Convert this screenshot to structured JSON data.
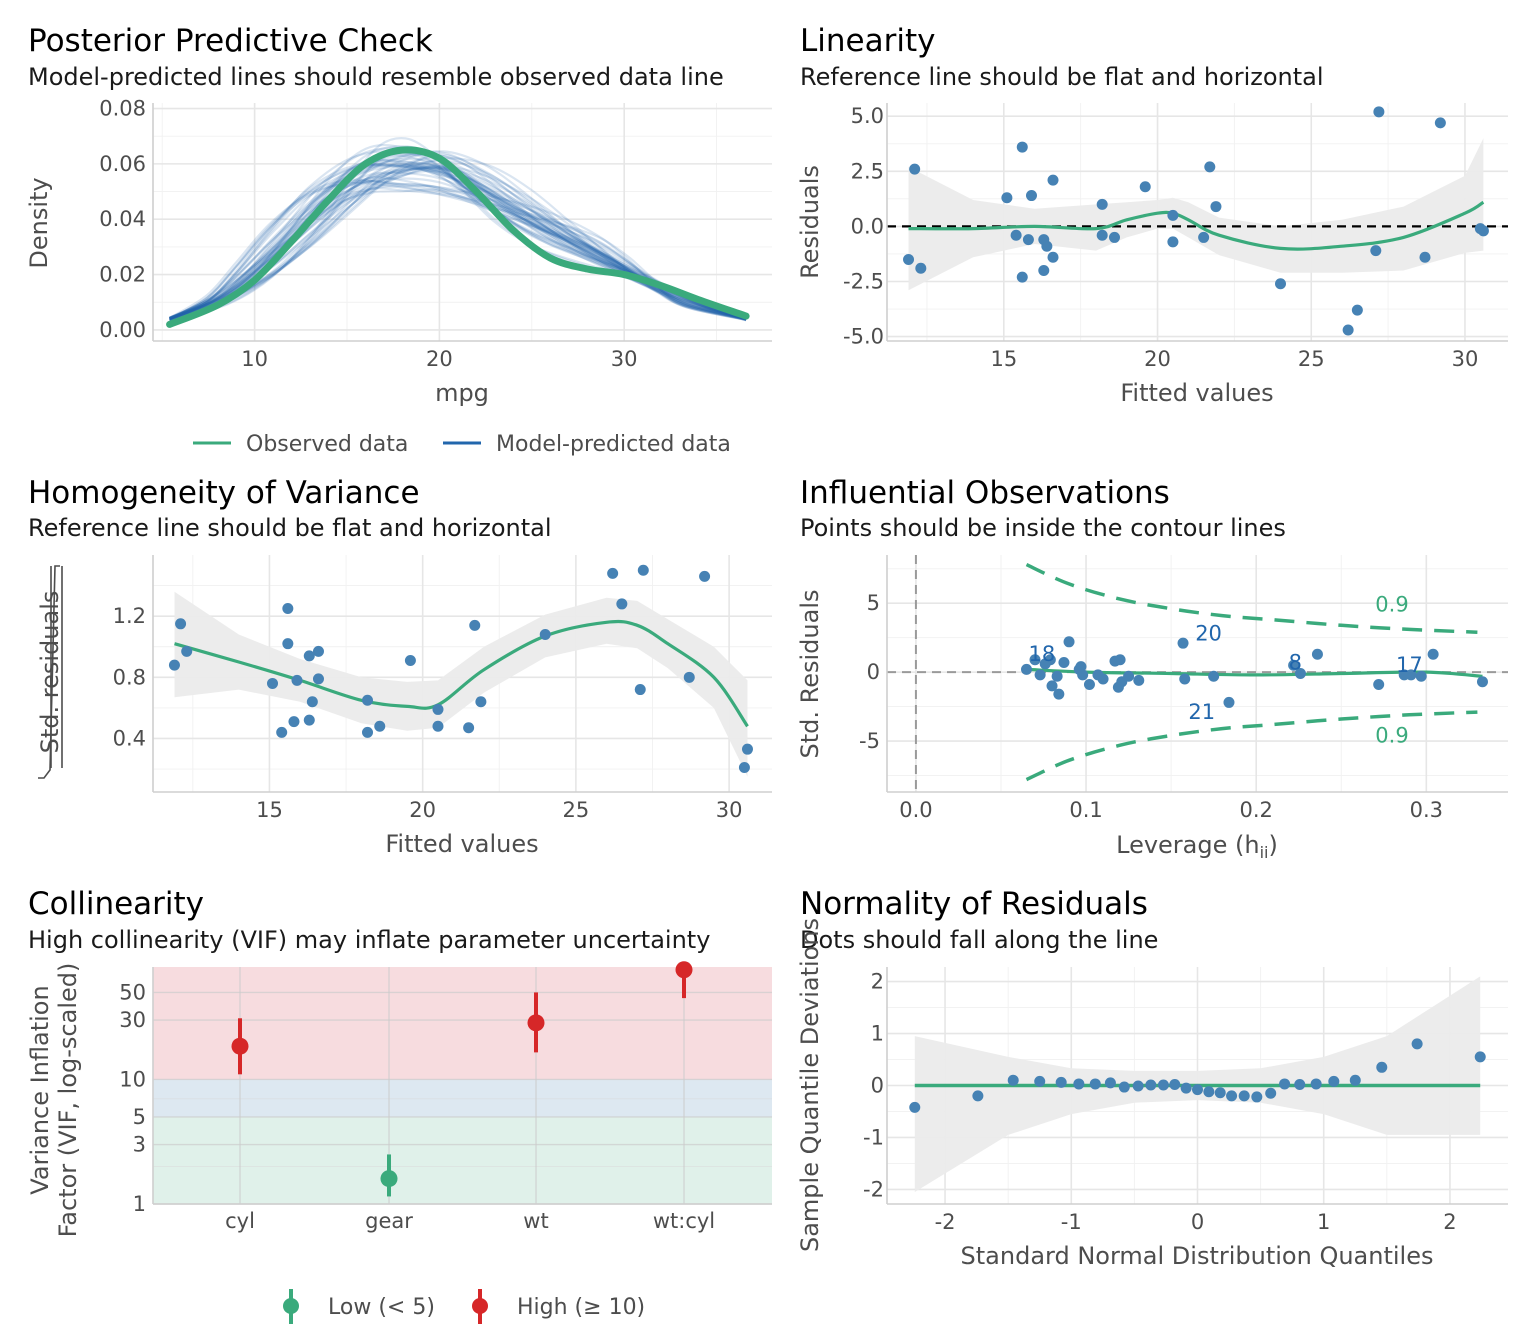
{
  "colors": {
    "green": "#3aaa7c",
    "blue": "#2166ac",
    "dot": "#4682b4",
    "red": "#d62728",
    "band": "#ebebeb"
  },
  "chart_data": [
    {
      "id": "ppc",
      "type": "line",
      "title": "Posterior Predictive Check",
      "subtitle": "Model-predicted lines should resemble observed data line",
      "xlabel": "mpg",
      "ylabel": "Density",
      "xlim": [
        4.5,
        38
      ],
      "ylim": [
        -0.004,
        0.082
      ],
      "xticks": [
        10,
        20,
        30
      ],
      "xtick_labels": [
        "10",
        "20",
        "30"
      ],
      "yticks": [
        0,
        0.02,
        0.04,
        0.06,
        0.08
      ],
      "ytick_labels": [
        "0.00",
        "0.02",
        "0.04",
        "0.06",
        "0.08"
      ],
      "observed": {
        "name": "Observed data",
        "x": [
          5.4,
          8,
          10,
          12,
          14,
          16,
          18,
          20,
          22,
          24,
          26,
          28,
          30,
          32,
          34,
          36.6
        ],
        "y": [
          0.002,
          0.009,
          0.018,
          0.032,
          0.047,
          0.06,
          0.065,
          0.062,
          0.05,
          0.036,
          0.026,
          0.022,
          0.02,
          0.016,
          0.011,
          0.005
        ]
      },
      "predicted": {
        "name": "Model-predicted data",
        "n_draws": 50,
        "x": [
          5.4,
          8,
          10,
          12,
          14,
          16,
          18,
          20,
          22,
          24,
          26,
          28,
          30,
          32,
          34,
          36.6
        ],
        "y": [
          0.004,
          0.011,
          0.021,
          0.034,
          0.047,
          0.056,
          0.059,
          0.058,
          0.052,
          0.044,
          0.036,
          0.029,
          0.022,
          0.015,
          0.009,
          0.004
        ]
      },
      "legend": [
        "Observed data",
        "Model-predicted data"
      ]
    },
    {
      "id": "linearity",
      "type": "scatter",
      "title": "Linearity",
      "subtitle": "Reference line should be flat and horizontal",
      "xlabel": "Fitted values",
      "ylabel": "Residuals",
      "xlim": [
        11.2,
        31.4
      ],
      "ylim": [
        -5.2,
        5.6
      ],
      "xticks": [
        15,
        20,
        25,
        30
      ],
      "xtick_labels": [
        "15",
        "20",
        "25",
        "30"
      ],
      "yticks": [
        -5,
        -2.5,
        0,
        2.5,
        5
      ],
      "ytick_labels": [
        "-5.0",
        "-2.5",
        "0.0",
        "2.5",
        "5.0"
      ],
      "points": [
        [
          11.9,
          -1.5
        ],
        [
          12.1,
          2.6
        ],
        [
          12.3,
          -1.9
        ],
        [
          15.1,
          1.3
        ],
        [
          15.4,
          -0.4
        ],
        [
          15.6,
          3.6
        ],
        [
          15.6,
          -2.3
        ],
        [
          15.8,
          -0.6
        ],
        [
          15.9,
          1.4
        ],
        [
          16.3,
          -2.0
        ],
        [
          16.3,
          -0.6
        ],
        [
          16.4,
          -0.9
        ],
        [
          16.6,
          2.1
        ],
        [
          16.6,
          -1.4
        ],
        [
          18.2,
          1.0
        ],
        [
          18.2,
          -0.4
        ],
        [
          18.6,
          -0.5
        ],
        [
          19.6,
          1.8
        ],
        [
          20.5,
          0.5
        ],
        [
          20.5,
          -0.7
        ],
        [
          21.5,
          -0.5
        ],
        [
          21.7,
          2.7
        ],
        [
          21.9,
          0.9
        ],
        [
          24.0,
          -2.6
        ],
        [
          26.2,
          -4.7
        ],
        [
          26.5,
          -3.8
        ],
        [
          27.1,
          -1.1
        ],
        [
          27.2,
          5.2
        ],
        [
          28.7,
          -1.4
        ],
        [
          29.2,
          4.7
        ],
        [
          30.5,
          -0.1
        ],
        [
          30.6,
          -0.2
        ]
      ],
      "smooth": {
        "x": [
          11.9,
          14,
          16,
          18,
          19,
          20,
          20.5,
          21,
          22,
          24,
          26,
          28,
          30,
          30.6
        ],
        "y": [
          -0.1,
          -0.1,
          0,
          -0.1,
          0.3,
          0.6,
          0.6,
          0.3,
          -0.4,
          -1.0,
          -0.9,
          -0.5,
          0.6,
          1.1
        ],
        "lower": [
          -2.9,
          -1.4,
          -0.8,
          -1.1,
          -0.5,
          -0.1,
          -0.1,
          -0.5,
          -1.3,
          -2.1,
          -2.1,
          -2.0,
          -1.2,
          -1.1
        ],
        "upper": [
          2.7,
          1.2,
          0.8,
          1.0,
          1.1,
          1.2,
          1.3,
          1.1,
          0.4,
          0.0,
          0.3,
          0.9,
          2.3,
          4.0
        ]
      }
    },
    {
      "id": "homogeneity",
      "type": "scatter",
      "title": "Homogeneity of Variance",
      "subtitle": "Reference line should be flat and horizontal",
      "xlabel": "Fitted values",
      "ylabel": "Std. residuals",
      "xlim": [
        11.2,
        31.4
      ],
      "ylim": [
        0.05,
        1.6
      ],
      "xticks": [
        15,
        20,
        25,
        30
      ],
      "xtick_labels": [
        "15",
        "20",
        "25",
        "30"
      ],
      "yticks": [
        0.4,
        0.8,
        1.2
      ],
      "ytick_labels": [
        "0.4",
        "0.8",
        "1.2"
      ],
      "points": [
        [
          11.9,
          0.88
        ],
        [
          12.1,
          1.15
        ],
        [
          12.3,
          0.97
        ],
        [
          15.1,
          0.76
        ],
        [
          15.4,
          0.44
        ],
        [
          15.6,
          1.25
        ],
        [
          15.6,
          1.02
        ],
        [
          15.8,
          0.51
        ],
        [
          15.9,
          0.78
        ],
        [
          16.3,
          0.94
        ],
        [
          16.3,
          0.52
        ],
        [
          16.4,
          0.64
        ],
        [
          16.6,
          0.97
        ],
        [
          16.6,
          0.79
        ],
        [
          18.2,
          0.65
        ],
        [
          18.2,
          0.44
        ],
        [
          18.6,
          0.48
        ],
        [
          19.6,
          0.91
        ],
        [
          20.5,
          0.59
        ],
        [
          20.5,
          0.48
        ],
        [
          21.5,
          0.47
        ],
        [
          21.7,
          1.14
        ],
        [
          21.9,
          0.64
        ],
        [
          24.0,
          1.08
        ],
        [
          26.2,
          1.48
        ],
        [
          26.5,
          1.28
        ],
        [
          27.1,
          0.72
        ],
        [
          27.2,
          1.5
        ],
        [
          28.7,
          0.8
        ],
        [
          29.2,
          1.46
        ],
        [
          30.5,
          0.21
        ],
        [
          30.6,
          0.33
        ]
      ],
      "smooth": {
        "x": [
          11.9,
          14,
          16,
          18,
          19.5,
          20.5,
          22,
          24,
          26,
          27,
          28,
          29.5,
          30.6
        ],
        "y": [
          1.02,
          0.9,
          0.78,
          0.65,
          0.61,
          0.62,
          0.85,
          1.07,
          1.16,
          1.14,
          1.02,
          0.8,
          0.48
        ],
        "lower": [
          0.67,
          0.72,
          0.64,
          0.5,
          0.45,
          0.47,
          0.7,
          0.93,
          1.02,
          0.99,
          0.86,
          0.6,
          0.15
        ],
        "upper": [
          1.36,
          1.08,
          0.92,
          0.8,
          0.77,
          0.78,
          1.0,
          1.21,
          1.32,
          1.3,
          1.18,
          1.0,
          0.78
        ]
      }
    },
    {
      "id": "influence",
      "type": "scatter",
      "title": "Influential Observations",
      "subtitle": "Points should be inside the contour lines",
      "xlabel": "Leverage (h",
      "xlabel_sub": "ii",
      "xlabel_end": ")",
      "ylabel": "Std. Residuals",
      "xlim": [
        -0.017,
        0.348
      ],
      "ylim": [
        -8.7,
        8.5
      ],
      "xticks": [
        0,
        0.1,
        0.2,
        0.3
      ],
      "xtick_labels": [
        "0.0",
        "0.1",
        "0.2",
        "0.3"
      ],
      "yticks": [
        -5,
        0,
        5
      ],
      "ytick_labels": [
        "-5",
        "0",
        "5"
      ],
      "points": [
        [
          0.065,
          0.2
        ],
        [
          0.07,
          0.9
        ],
        [
          0.073,
          -0.2
        ],
        [
          0.076,
          0.6
        ],
        [
          0.079,
          0.9
        ],
        [
          0.08,
          -1.0
        ],
        [
          0.083,
          -0.3
        ],
        [
          0.084,
          -1.6
        ],
        [
          0.087,
          0.7
        ],
        [
          0.09,
          2.2
        ],
        [
          0.096,
          0.2
        ],
        [
          0.097,
          0.4
        ],
        [
          0.098,
          -0.2
        ],
        [
          0.102,
          -0.9
        ],
        [
          0.107,
          -0.2
        ],
        [
          0.11,
          -0.5
        ],
        [
          0.117,
          0.8
        ],
        [
          0.119,
          -1.1
        ],
        [
          0.12,
          0.9
        ],
        [
          0.121,
          -0.7
        ],
        [
          0.125,
          -0.3
        ],
        [
          0.131,
          -0.6
        ],
        [
          0.157,
          2.1
        ],
        [
          0.158,
          -0.5
        ],
        [
          0.175,
          -0.3
        ],
        [
          0.184,
          -2.2
        ],
        [
          0.222,
          0.5
        ],
        [
          0.226,
          -0.1
        ],
        [
          0.236,
          1.3
        ],
        [
          0.272,
          -0.9
        ],
        [
          0.287,
          -0.2
        ],
        [
          0.291,
          -0.2
        ],
        [
          0.297,
          -0.3
        ],
        [
          0.304,
          1.3
        ],
        [
          0.333,
          -0.7
        ]
      ],
      "smooth": {
        "x": [
          0.065,
          0.1,
          0.15,
          0.2,
          0.25,
          0.3,
          0.333
        ],
        "y": [
          0.2,
          0.0,
          -0.1,
          -0.2,
          -0.1,
          0.0,
          -0.3
        ]
      },
      "contour_upper": {
        "x": [
          0.065,
          0.09,
          0.12,
          0.15,
          0.18,
          0.21,
          0.25,
          0.29,
          0.33
        ],
        "y": [
          7.8,
          6.4,
          5.3,
          4.6,
          4.1,
          3.8,
          3.4,
          3.1,
          2.9
        ]
      },
      "contour_lower": {
        "x": [
          0.065,
          0.09,
          0.12,
          0.15,
          0.18,
          0.21,
          0.25,
          0.29,
          0.33
        ],
        "y": [
          -7.8,
          -6.4,
          -5.3,
          -4.6,
          -4.1,
          -3.8,
          -3.4,
          -3.1,
          -2.9
        ]
      },
      "contour_labels": [
        {
          "text": "0.9",
          "x": 0.27,
          "y": 4.9
        },
        {
          "text": "0.9",
          "x": 0.27,
          "y": -4.6
        }
      ],
      "point_labels": [
        {
          "text": "18",
          "x": 0.074,
          "y": 1.3
        },
        {
          "text": "20",
          "x": 0.172,
          "y": 2.8
        },
        {
          "text": "21",
          "x": 0.168,
          "y": -2.9
        },
        {
          "text": "8",
          "x": 0.223,
          "y": 0.7
        },
        {
          "text": "17",
          "x": 0.29,
          "y": 0.5
        }
      ]
    },
    {
      "id": "collinearity",
      "type": "scatter",
      "title": "Collinearity",
      "subtitle": "High collinearity (VIF) may inflate parameter uncertainty",
      "xlabel": "",
      "ylabel_lines": [
        "Variance Inflation",
        "Factor (VIF, log-scaled)"
      ],
      "categories": [
        "cyl",
        "gear",
        "wt",
        "wt:cyl"
      ],
      "vif": [
        18.5,
        1.6,
        28.5,
        76
      ],
      "ci_low": [
        11,
        1.15,
        16.5,
        45
      ],
      "ci_high": [
        31,
        2.5,
        50,
        80
      ],
      "level": [
        "High",
        "Low",
        "High",
        "High"
      ],
      "ylim": [
        1,
        80
      ],
      "scale": "log",
      "yticks": [
        1,
        3,
        5,
        10,
        30,
        50
      ],
      "ytick_labels": [
        "1",
        "3",
        "5",
        "10",
        "30",
        "50"
      ],
      "bands": [
        {
          "from": 1,
          "to": 5,
          "color": "#e0f1ea"
        },
        {
          "from": 5,
          "to": 10,
          "color": "#dde8f1"
        },
        {
          "from": 10,
          "to": 80,
          "color": "#f7dcdf"
        }
      ],
      "legend": [
        "Low (< 5)",
        "High (≥ 10)"
      ]
    },
    {
      "id": "normality",
      "type": "scatter",
      "title": "Normality of Residuals",
      "subtitle": "Dots should fall along the line",
      "xlabel": "Standard Normal Distribution Quantiles",
      "ylabel": "Sample Quantile Deviations",
      "xlim": [
        -2.46,
        2.46
      ],
      "ylim": [
        -2.28,
        2.28
      ],
      "xticks": [
        -2,
        -1,
        0,
        1,
        2
      ],
      "xtick_labels": [
        "-2",
        "-1",
        "0",
        "1",
        "2"
      ],
      "yticks": [
        -2,
        -1,
        0,
        1,
        2
      ],
      "ytick_labels": [
        "-2",
        "-1",
        "0",
        "1",
        "2"
      ],
      "points": [
        [
          -2.24,
          -0.42
        ],
        [
          -1.74,
          -0.2
        ],
        [
          -1.46,
          0.1
        ],
        [
          -1.25,
          0.08
        ],
        [
          -1.08,
          0.06
        ],
        [
          -0.94,
          0.03
        ],
        [
          -0.81,
          0.03
        ],
        [
          -0.69,
          0.05
        ],
        [
          -0.58,
          -0.03
        ],
        [
          -0.47,
          -0.01
        ],
        [
          -0.37,
          0.01
        ],
        [
          -0.27,
          0.01
        ],
        [
          -0.18,
          0.02
        ],
        [
          -0.09,
          -0.05
        ],
        [
          0,
          -0.08
        ],
        [
          0.09,
          -0.12
        ],
        [
          0.18,
          -0.14
        ],
        [
          0.27,
          -0.2
        ],
        [
          0.37,
          -0.2
        ],
        [
          0.47,
          -0.22
        ],
        [
          0.58,
          -0.15
        ],
        [
          0.69,
          0.03
        ],
        [
          0.81,
          0.02
        ],
        [
          0.94,
          0.03
        ],
        [
          1.08,
          0.08
        ],
        [
          1.25,
          0.1
        ],
        [
          1.46,
          0.35
        ],
        [
          1.74,
          0.8
        ],
        [
          2.24,
          0.55
        ]
      ],
      "band": {
        "x": [
          -2.24,
          -1.5,
          -1,
          -0.5,
          0,
          0.5,
          1,
          1.5,
          2.24
        ],
        "lower": [
          -2.05,
          -0.95,
          -0.55,
          -0.33,
          -0.28,
          -0.33,
          -0.55,
          -0.95,
          -0.95
        ],
        "upper": [
          0.95,
          0.55,
          0.33,
          0.28,
          0.28,
          0.33,
          0.55,
          0.95,
          2.1
        ]
      }
    }
  ]
}
